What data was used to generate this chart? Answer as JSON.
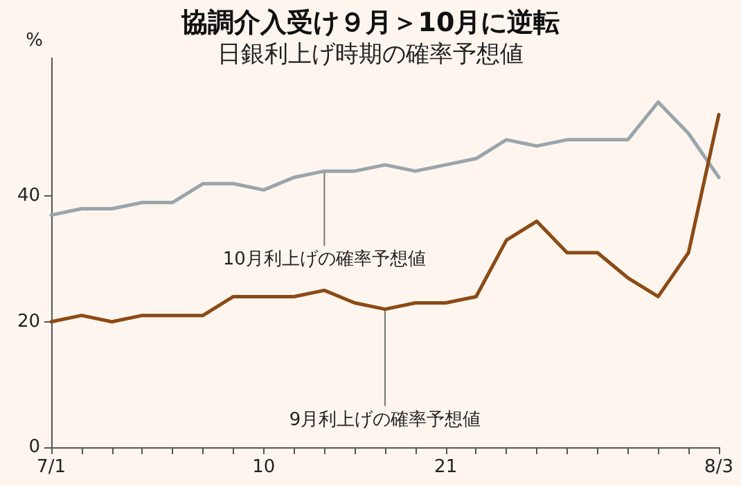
{
  "chart_data": {
    "type": "line",
    "title": "協調介入受け９月＞10月に逆転",
    "subtitle": "日銀利上げ時期の確率予想値",
    "ylabel": "%",
    "categories": [
      "7/1",
      null,
      null,
      null,
      null,
      null,
      null,
      "10",
      null,
      null,
      null,
      null,
      null,
      "21",
      null,
      null,
      null,
      null,
      null,
      null,
      null,
      null,
      "8/3"
    ],
    "series": [
      {
        "name": "10月利上げの確率予想値",
        "color": "#9aa4ab",
        "values": [
          37,
          38,
          38,
          39,
          39,
          42,
          42,
          41,
          43,
          44,
          44,
          45,
          44,
          45,
          46,
          49,
          48,
          49,
          49,
          49,
          55,
          50,
          43
        ]
      },
      {
        "name": "9月利上げの確率予想値",
        "color": "#8b4a16",
        "values": [
          20,
          21,
          20,
          21,
          21,
          21,
          24,
          24,
          24,
          25,
          23,
          22,
          23,
          23,
          24,
          33,
          36,
          31,
          31,
          27,
          24,
          31,
          53
        ]
      }
    ],
    "ylim": [
      0,
      62
    ],
    "yticks": [
      0,
      20,
      40
    ],
    "grid": false,
    "legend": false,
    "marker": "none",
    "line_style": "solid"
  }
}
